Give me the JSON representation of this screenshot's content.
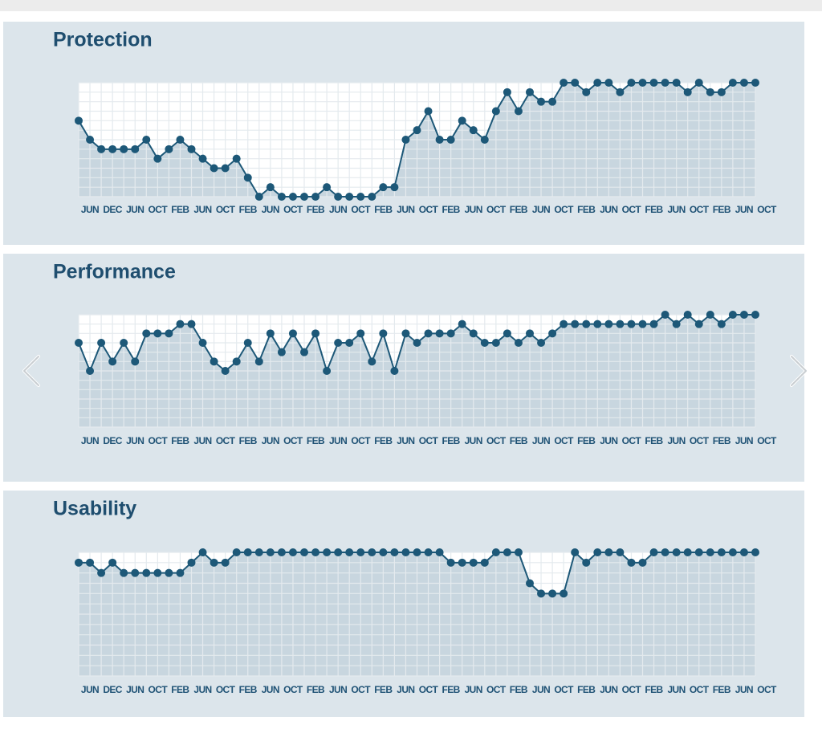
{
  "chart_data": [
    {
      "type": "line",
      "title": "Protection",
      "color": "#1d5878",
      "grid": true,
      "x_labels": [
        "JUN",
        "DEC",
        "JUN",
        "OCT",
        "FEB",
        "JUN",
        "OCT",
        "FEB",
        "JUN",
        "OCT",
        "FEB",
        "JUN",
        "OCT",
        "FEB",
        "JUN",
        "OCT",
        "FEB",
        "JUN",
        "OCT",
        "FEB",
        "JUN",
        "OCT",
        "FEB",
        "JUN",
        "OCT",
        "FEB",
        "JUN",
        "OCT",
        "FEB",
        "JUN",
        "OCT"
      ],
      "values": [
        8,
        6,
        5,
        5,
        5,
        5,
        6,
        4,
        5,
        6,
        5,
        4,
        3,
        3,
        4,
        2,
        0,
        1,
        0,
        0,
        0,
        0,
        1,
        0,
        0,
        0,
        0,
        1,
        1,
        6,
        7,
        9,
        6,
        6,
        8,
        7,
        6,
        9,
        11,
        9,
        11,
        10,
        10,
        12,
        12,
        11,
        12,
        12,
        11,
        12,
        12,
        12,
        12,
        12,
        11,
        12,
        11,
        11,
        12,
        12,
        12
      ],
      "ylim": [
        0,
        12
      ],
      "yticks": [
        0,
        1,
        2,
        3,
        4,
        5,
        6,
        7,
        8,
        9,
        10,
        11,
        12
      ]
    },
    {
      "type": "line",
      "title": "Performance",
      "color": "#1d5878",
      "grid": true,
      "x_labels": [
        "JUN",
        "DEC",
        "JUN",
        "OCT",
        "FEB",
        "JUN",
        "OCT",
        "FEB",
        "JUN",
        "OCT",
        "FEB",
        "JUN",
        "OCT",
        "FEB",
        "JUN",
        "OCT",
        "FEB",
        "JUN",
        "OCT",
        "FEB",
        "JUN",
        "OCT",
        "FEB",
        "JUN",
        "OCT",
        "FEB",
        "JUN",
        "OCT",
        "FEB",
        "JUN",
        "OCT"
      ],
      "values": [
        9,
        6,
        9,
        7,
        9,
        7,
        10,
        10,
        10,
        11,
        11,
        9,
        7,
        6,
        7,
        9,
        7,
        10,
        8,
        10,
        8,
        10,
        6,
        9,
        9,
        10,
        7,
        10,
        6,
        10,
        9,
        10,
        10,
        10,
        11,
        10,
        9,
        9,
        10,
        9,
        10,
        9,
        10,
        11,
        11,
        11,
        11,
        11,
        11,
        11,
        11,
        11,
        12,
        11,
        12,
        11,
        12,
        11,
        12,
        12,
        12
      ],
      "ylim": [
        0,
        12
      ],
      "yticks": [
        0,
        1,
        2,
        3,
        4,
        5,
        6,
        7,
        8,
        9,
        10,
        11,
        12
      ]
    },
    {
      "type": "line",
      "title": "Usability",
      "color": "#1d5878",
      "grid": true,
      "x_labels": [
        "JUN",
        "DEC",
        "JUN",
        "OCT",
        "FEB",
        "JUN",
        "OCT",
        "FEB",
        "JUN",
        "OCT",
        "FEB",
        "JUN",
        "OCT",
        "FEB",
        "JUN",
        "OCT",
        "FEB",
        "JUN",
        "OCT",
        "FEB",
        "JUN",
        "OCT",
        "FEB",
        "JUN",
        "OCT",
        "FEB",
        "JUN",
        "OCT",
        "FEB",
        "JUN",
        "OCT"
      ],
      "values": [
        11,
        11,
        10,
        11,
        10,
        10,
        10,
        10,
        10,
        10,
        11,
        12,
        11,
        11,
        12,
        12,
        12,
        12,
        12,
        12,
        12,
        12,
        12,
        12,
        12,
        12,
        12,
        12,
        12,
        12,
        12,
        12,
        12,
        11,
        11,
        11,
        11,
        12,
        12,
        12,
        9,
        8,
        8,
        8,
        12,
        11,
        12,
        12,
        12,
        11,
        11,
        12,
        12,
        12,
        12,
        12,
        12,
        12,
        12,
        12,
        12
      ],
      "ylim": [
        0,
        12
      ],
      "yticks": [
        0,
        1,
        2,
        3,
        4,
        5,
        6,
        7,
        8,
        9,
        10,
        11,
        12
      ]
    }
  ]
}
